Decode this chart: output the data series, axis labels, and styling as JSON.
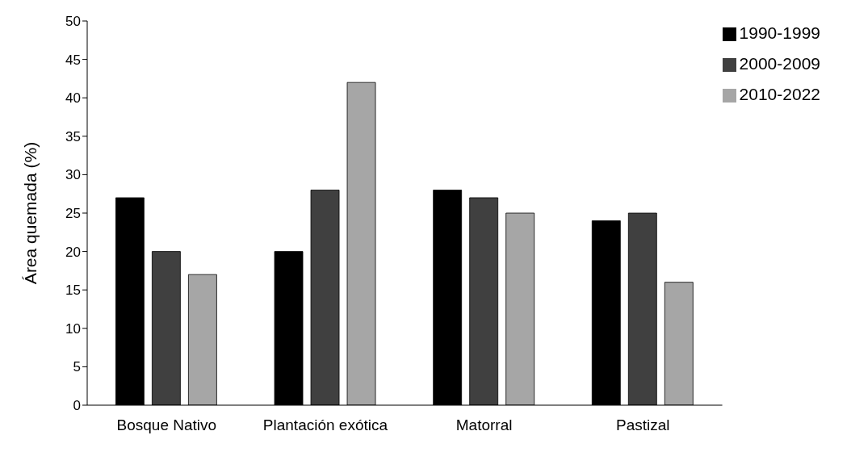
{
  "chart_data": {
    "type": "bar",
    "ylabel": "Área quemada (%)",
    "categories": [
      "Bosque Nativo",
      "Plantación exótica",
      "Matorral",
      "Pastizal"
    ],
    "series": [
      {
        "name": "1990-1999",
        "color": "#000000",
        "values": [
          27,
          20,
          28,
          24
        ]
      },
      {
        "name": "2000-2009",
        "color": "#404040",
        "values": [
          20,
          28,
          27,
          25
        ]
      },
      {
        "name": "2010-2022",
        "color": "#a6a6a6",
        "values": [
          17,
          42,
          25,
          16
        ]
      }
    ],
    "ylim": [
      0,
      50
    ],
    "yticks": [
      0,
      5,
      10,
      15,
      20,
      25,
      30,
      35,
      40,
      45,
      50
    ],
    "grid": false,
    "legend": "top right"
  }
}
